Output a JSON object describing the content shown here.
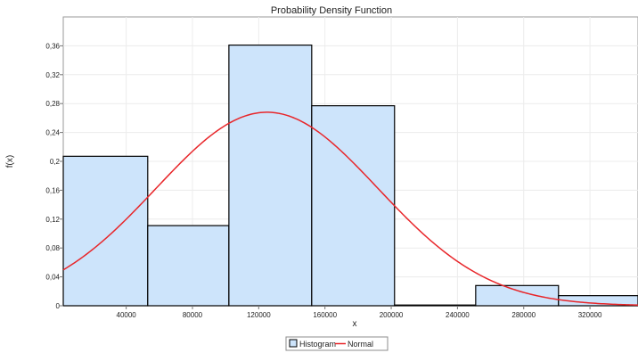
{
  "chart_data": {
    "type": "bar",
    "title": "Probability Density Function",
    "xlabel": "x",
    "ylabel": "f(x)",
    "xlim": [
      2000,
      349000
    ],
    "ylim": [
      0,
      0.4
    ],
    "grid": true,
    "legend_position": "bottom",
    "x_ticks": [
      "40000",
      "80000",
      "120000",
      "160000",
      "200000",
      "240000",
      "280000",
      "320000"
    ],
    "x_tick_values": [
      40000,
      80000,
      120000,
      160000,
      200000,
      240000,
      280000,
      320000
    ],
    "y_ticks": [
      "0",
      "0,04",
      "0,08",
      "0,12",
      "0,16",
      "0,2",
      "0,24",
      "0,28",
      "0,32",
      "0,36"
    ],
    "y_tick_values": [
      0,
      0.04,
      0.08,
      0.12,
      0.16,
      0.2,
      0.24,
      0.28,
      0.32,
      0.36
    ],
    "series": [
      {
        "name": "Histogram",
        "type": "histogram",
        "bins": [
          {
            "x0": 2000,
            "x1": 53000,
            "value": 0.207
          },
          {
            "x0": 53000,
            "x1": 102000,
            "value": 0.111
          },
          {
            "x0": 102000,
            "x1": 152000,
            "value": 0.361
          },
          {
            "x0": 152000,
            "x1": 202000,
            "value": 0.277
          },
          {
            "x0": 202000,
            "x1": 251000,
            "value": 0.001
          },
          {
            "x0": 251000,
            "x1": 301000,
            "value": 0.028
          },
          {
            "x0": 301000,
            "x1": 349000,
            "value": 0.014
          }
        ],
        "color": "#cde4fb"
      },
      {
        "name": "Normal",
        "type": "line",
        "mean": 125000,
        "peak": 0.268,
        "sd": 67000,
        "color": "#e8262a"
      }
    ]
  }
}
